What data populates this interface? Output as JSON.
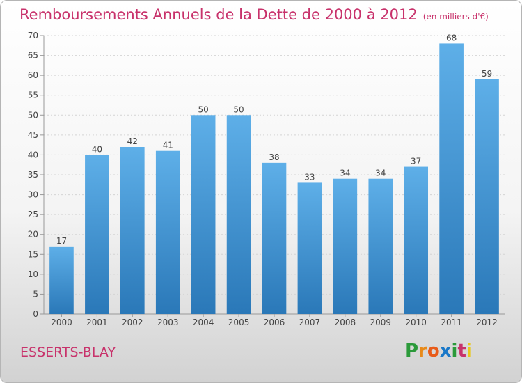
{
  "header": {
    "title": "Remboursements Annuels de la Dette de 2000 à 2012",
    "unit": "(en milliers d'€)"
  },
  "footer": {
    "location": "ESSERTS-BLAY",
    "brand": "Proxiti",
    "brand_colors": [
      "#2b9a3a",
      "#e88a1a",
      "#e85c1a",
      "#1a78c8",
      "#2b9a3a",
      "#c8326b",
      "#e8c81a"
    ]
  },
  "chart_data": {
    "type": "bar",
    "categories": [
      "2000",
      "2001",
      "2002",
      "2003",
      "2004",
      "2005",
      "2006",
      "2007",
      "2008",
      "2009",
      "2010",
      "2011",
      "2012"
    ],
    "values": [
      17,
      40,
      42,
      41,
      50,
      50,
      38,
      33,
      34,
      34,
      37,
      68,
      59
    ],
    "ylim": [
      0,
      70
    ],
    "yticks": [
      0,
      5,
      10,
      15,
      20,
      25,
      30,
      35,
      40,
      45,
      50,
      55,
      60,
      65,
      70
    ],
    "grid": true,
    "bar_color_light": "#5eafe8",
    "bar_color_dark": "#2a78b8",
    "title_color": "#c8326b"
  }
}
